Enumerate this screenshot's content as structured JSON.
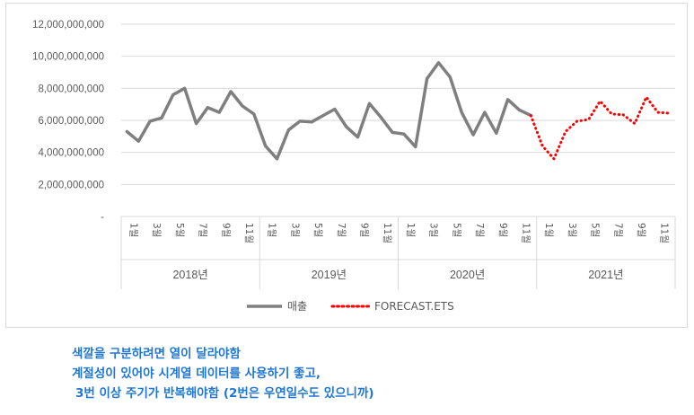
{
  "chart_data": {
    "type": "line",
    "y_ticks": [
      "12,000,000,000",
      "10,000,000,000",
      "8,000,000,000",
      "6,000,000,000",
      "4,000,000,000",
      "2,000,000,000",
      "-"
    ],
    "ylim": [
      0,
      12000000000
    ],
    "grid": true,
    "legend_position": "bottom",
    "years": [
      "2018년",
      "2019년",
      "2020년",
      "2021년"
    ],
    "month_labels": [
      "1월",
      "3월",
      "5월",
      "7월",
      "9월",
      "11월"
    ],
    "series": [
      {
        "name": "매출",
        "color": "#7f7f7f",
        "style": "solid",
        "start_index": 0,
        "values": [
          5300000000,
          4700000000,
          5950000000,
          6150000000,
          7600000000,
          8000000000,
          5800000000,
          6800000000,
          6500000000,
          7800000000,
          6900000000,
          6400000000,
          4400000000,
          3600000000,
          5400000000,
          5950000000,
          5900000000,
          6300000000,
          6700000000,
          5600000000,
          4950000000,
          7050000000,
          6200000000,
          5250000000,
          5150000000,
          4350000000,
          8600000000,
          9600000000,
          8700000000,
          6500000000,
          5100000000,
          6500000000,
          5200000000,
          7300000000,
          6650000000,
          6300000000
        ]
      },
      {
        "name": "FORECAST.ETS",
        "color": "#ff0000",
        "style": "dotted",
        "start_index": 35,
        "values": [
          6300000000,
          4400000000,
          3600000000,
          5300000000,
          5950000000,
          6050000000,
          7200000000,
          6400000000,
          6350000000,
          5800000000,
          7450000000,
          6500000000,
          6450000000
        ]
      }
    ]
  },
  "notes": [
    "색깔을 구분하려면 열이 달라야함",
    "계절성이 있어야 시계열 데이터를 사용하기 좋고,",
    "3번 이상 주기가 반복해야함 (2번은 우연일수도 있으니까)"
  ]
}
